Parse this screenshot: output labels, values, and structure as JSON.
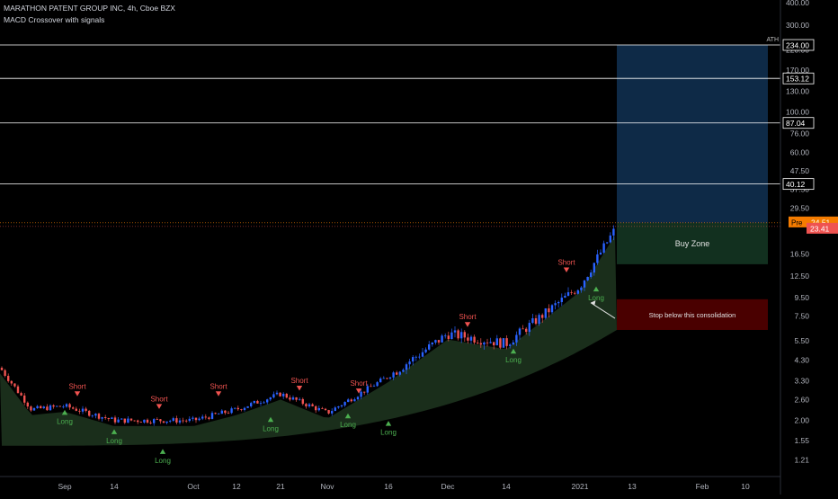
{
  "legend": {
    "symbol_line": "MARATHON PATENT GROUP INC, 4h, Cboe BZX",
    "indicator": "MACD Crossover with signals"
  },
  "colors": {
    "background": "#000000",
    "candle_up": "#2962ff",
    "candle_down": "#ef5350",
    "area_fill": "#1a2e1b",
    "signal_long": "#4caf50",
    "signal_short": "#ef5350",
    "target_zone": "#0e2a47",
    "buy_zone": "#12301f",
    "stop_zone": "#4a0000",
    "level_line": "#ffffff",
    "price_tag_pre": "#f57c00",
    "price_tag_last": "#ef5350"
  },
  "chart_data": {
    "type": "candlestick",
    "scale": "log",
    "ylim": [
      1.1,
      400
    ],
    "y_ticks": [
      "400.00",
      "300.00",
      "220.00",
      "170.00",
      "130.00",
      "100.00",
      "76.00",
      "60.00",
      "47.50",
      "37.50",
      "29.50",
      "16.50",
      "12.50",
      "9.50",
      "7.50",
      "5.50",
      "4.30",
      "3.30",
      "2.60",
      "2.00",
      "1.55",
      "1.21"
    ],
    "x_ticks": [
      "Sep",
      "14",
      "Oct",
      "12",
      "21",
      "Nov",
      "16",
      "Dec",
      "14",
      "2021",
      "13",
      "Feb",
      "10"
    ],
    "price_path": [
      {
        "x": "Sep",
        "y": 2.4
      },
      {
        "x": "14",
        "y": 2.0
      },
      {
        "x": "Oct",
        "y": 2.0
      },
      {
        "x": "12",
        "y": 2.3
      },
      {
        "x": "21",
        "y": 2.8
      },
      {
        "x": "Nov",
        "y": 2.2
      },
      {
        "x": "16",
        "y": 3.5
      },
      {
        "x": "Dec",
        "y": 6.0
      },
      {
        "x": "14",
        "y": 5.3
      },
      {
        "x": "2021",
        "y": 11.0
      },
      {
        "x": "13",
        "y": 23.41
      }
    ],
    "horizontal_levels": [
      {
        "price": 234.0,
        "label": "234.00",
        "note": "ATH"
      },
      {
        "price": 153.12,
        "label": "153.12"
      },
      {
        "price": 87.04,
        "label": "87.04"
      },
      {
        "price": 40.12,
        "label": "40.12"
      }
    ],
    "current_price": {
      "pre_label": "Pre",
      "pre_value": "24.51",
      "last_value": "23.41"
    },
    "signals": [
      {
        "type": "Long",
        "x": "Sep",
        "price": 2.3
      },
      {
        "type": "Short",
        "x": "Sep",
        "price": 2.7
      },
      {
        "type": "Long",
        "x": "14",
        "price": 1.8
      },
      {
        "type": "Short",
        "x": "Oct",
        "price": 2.3
      },
      {
        "type": "Long",
        "x": "Oct",
        "price": 1.4
      },
      {
        "type": "Short",
        "x": "12",
        "price": 2.7
      },
      {
        "type": "Long",
        "x": "12",
        "price": 2.1
      },
      {
        "type": "Short",
        "x": "21",
        "price": 2.9
      },
      {
        "type": "Long",
        "x": "Nov",
        "price": 2.2
      },
      {
        "type": "Short",
        "x": "Nov",
        "price": 2.8
      },
      {
        "type": "Long",
        "x": "16",
        "price": 2.0
      },
      {
        "type": "Short",
        "x": "Dec",
        "price": 6.5
      },
      {
        "type": "Long",
        "x": "14",
        "price": 5.0
      },
      {
        "type": "Short",
        "x": "2021",
        "price": 13.0
      },
      {
        "type": "Long",
        "x": "2021",
        "price": 11.0
      }
    ],
    "zones": [
      {
        "name": "target",
        "top": 234.0,
        "bottom": 24.5,
        "label": ""
      },
      {
        "name": "buy",
        "top": 24.5,
        "bottom": 14.5,
        "label": "Buy Zone"
      },
      {
        "name": "stop",
        "top": 9.3,
        "bottom": 6.3,
        "label": "Stop below this consolidation"
      }
    ],
    "grid": false
  }
}
